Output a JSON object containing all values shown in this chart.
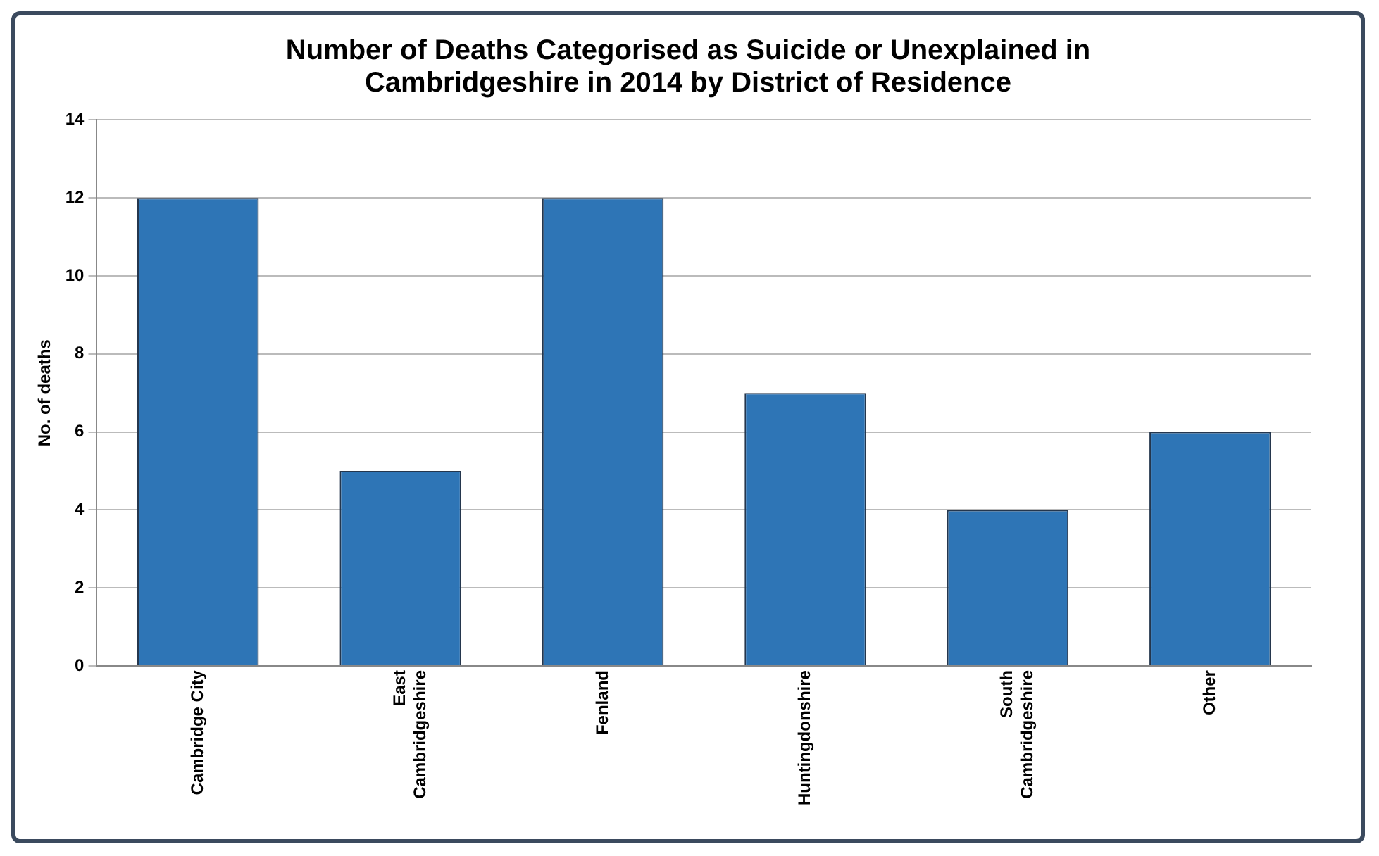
{
  "chart_data": {
    "type": "bar",
    "title": "Number of Deaths Categorised as Suicide or Unexplained in Cambridgeshire in 2014 by District of Residence",
    "ylabel": "No. of deaths",
    "categories": [
      "Cambridge City",
      "East Cambridgeshire",
      "Fenland",
      "Huntingdonshire",
      "South Cambridgeshire",
      "Other"
    ],
    "values": [
      12,
      5,
      12,
      7,
      4,
      6
    ],
    "color": "#2e75b6",
    "ylim": [
      0,
      14
    ],
    "yticks": [
      0,
      2,
      4,
      6,
      8,
      10,
      12,
      14
    ],
    "grid": "y",
    "legend": false
  }
}
